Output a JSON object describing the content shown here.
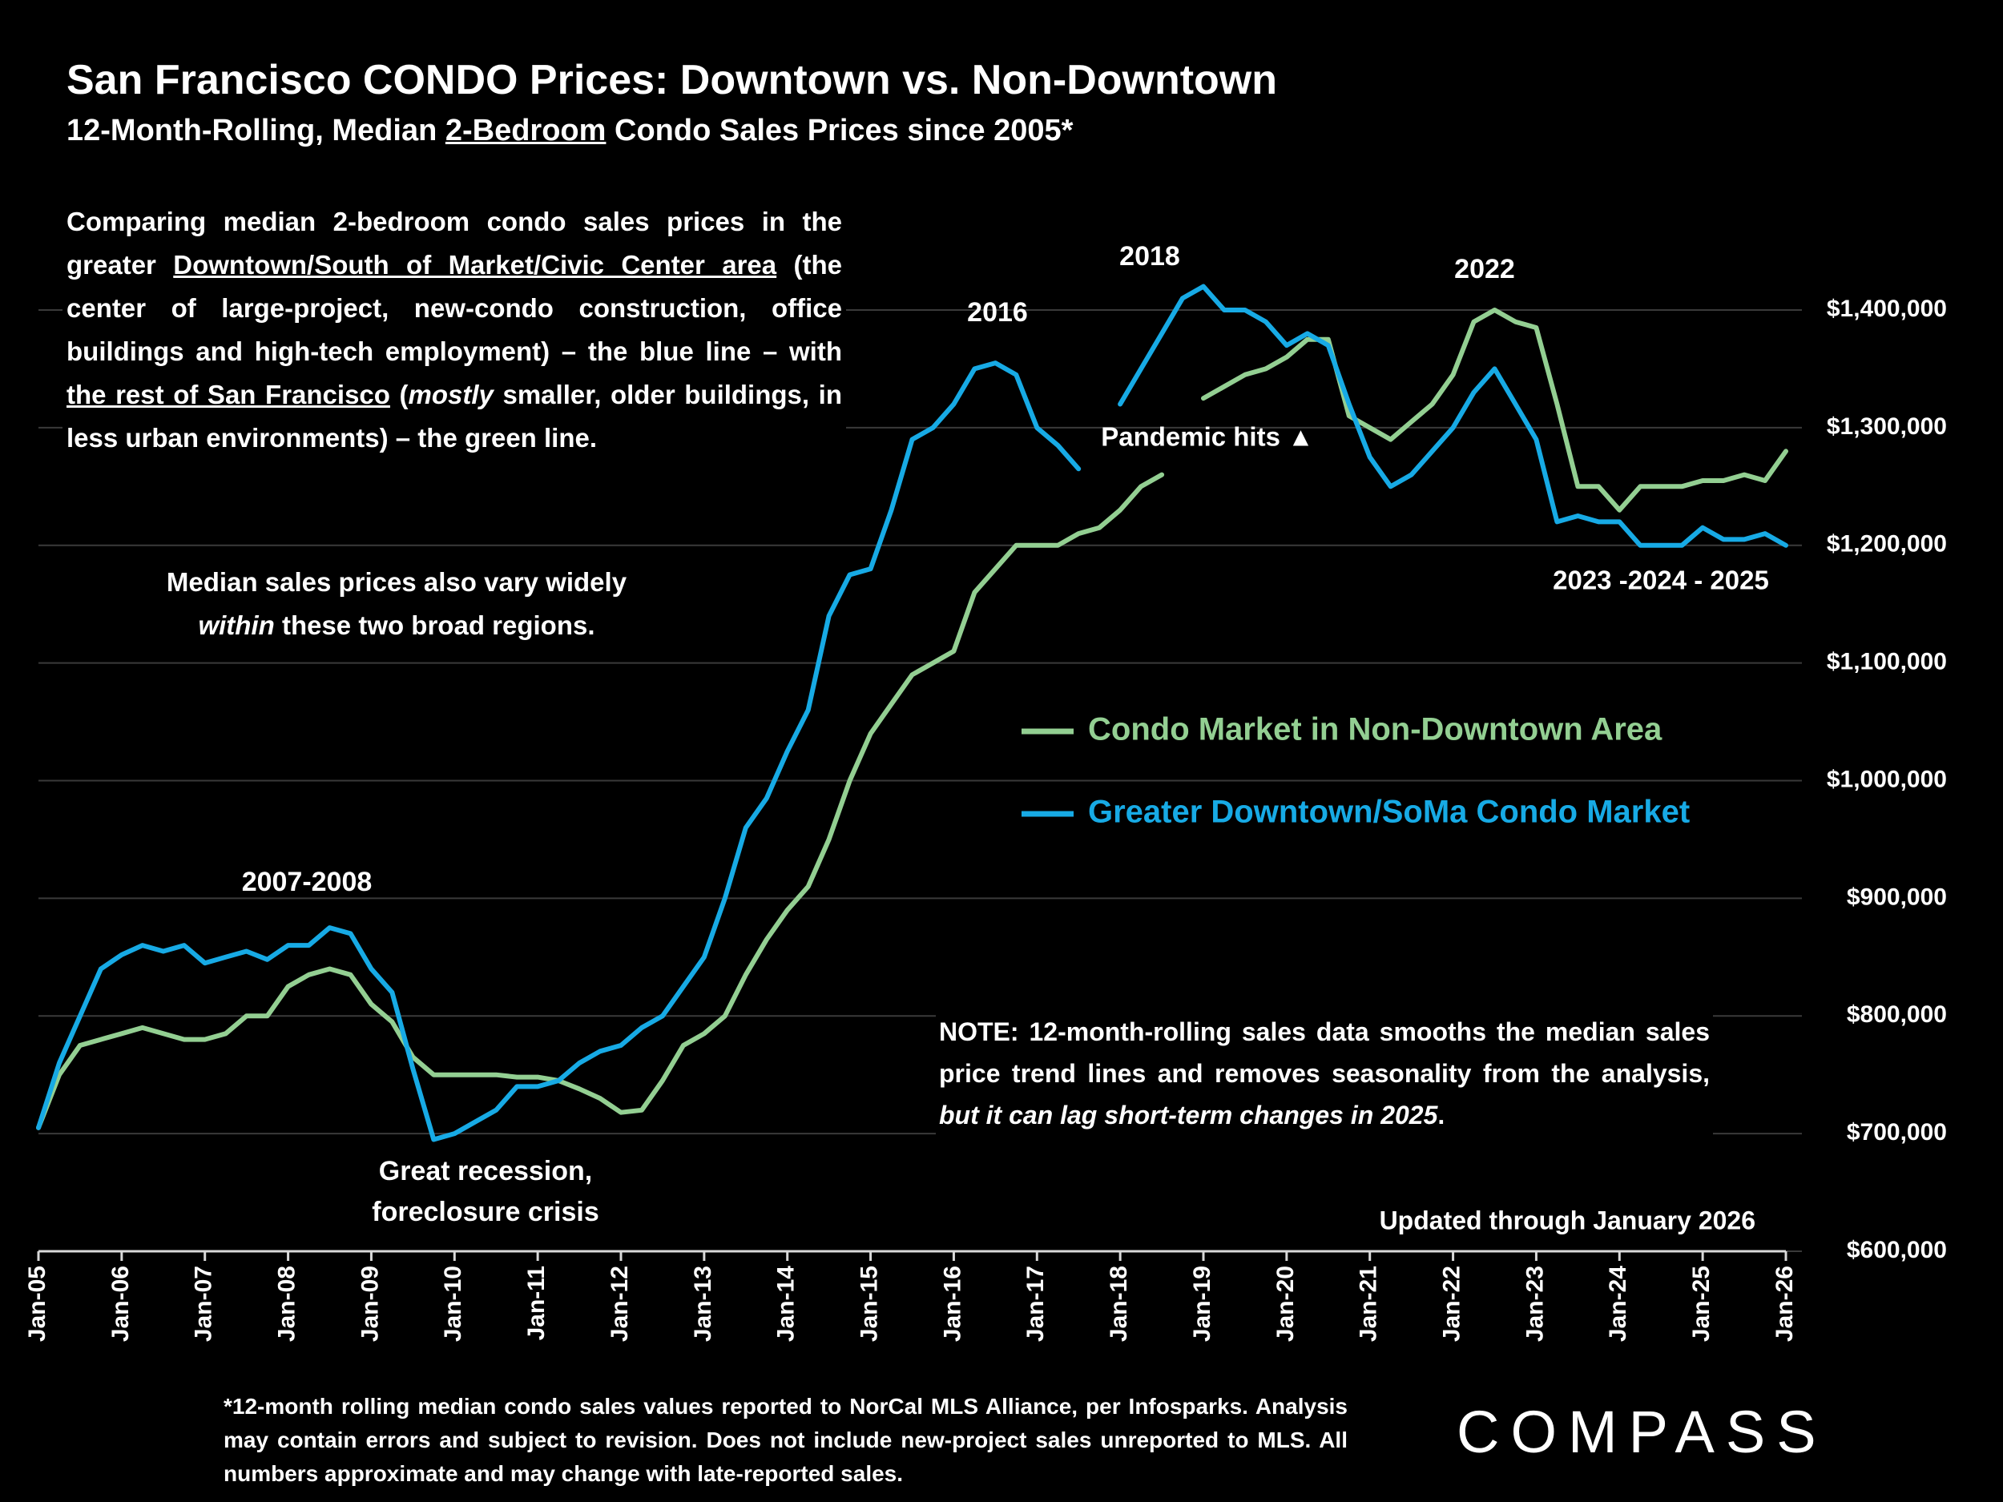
{
  "chart_data": {
    "type": "line",
    "title": "San Francisco CONDO Prices: Downtown vs. Non-Downtown",
    "subtitle": [
      "12-Month-Rolling, Median ",
      "2-Bedroom",
      " Condo Sales Prices since 2005*"
    ],
    "categories": [
      "Jan-05",
      null,
      null,
      null,
      "Jan-06",
      null,
      null,
      null,
      "Jan-07",
      null,
      null,
      null,
      "Jan-08",
      null,
      null,
      null,
      "Jan-09",
      null,
      null,
      null,
      "Jan-10",
      null,
      null,
      null,
      "Jan-11",
      null,
      null,
      null,
      "Jan-12",
      null,
      null,
      null,
      "Jan-13",
      null,
      null,
      null,
      "Jan-14",
      null,
      null,
      null,
      "Jan-15",
      null,
      null,
      null,
      "Jan-16",
      null,
      null,
      null,
      "Jan-17",
      null,
      null,
      null,
      "Jan-18",
      null,
      null,
      null,
      "Jan-19",
      null,
      null,
      null,
      "Jan-20",
      null,
      null,
      null,
      "Jan-21",
      null,
      null,
      null,
      "Jan-22",
      null,
      null,
      null,
      "Jan-23",
      null,
      null,
      null,
      "Jan-24",
      null,
      null,
      null,
      "Jan-25",
      null,
      null,
      null,
      "Jan-26"
    ],
    "series": [
      {
        "name": "Condo Market in Non-Downtown Area",
        "color": "#93cf92",
        "values": [
          705000,
          750000,
          775000,
          780000,
          785000,
          790000,
          785000,
          780000,
          780000,
          785000,
          800000,
          800000,
          825000,
          835000,
          840000,
          835000,
          810000,
          795000,
          765000,
          750000,
          750000,
          750000,
          750000,
          748000,
          748000,
          745000,
          738000,
          730000,
          718000,
          720000,
          745000,
          775000,
          785000,
          800000,
          835000,
          865000,
          890000,
          910000,
          950000,
          1000000,
          1040000,
          1065000,
          1090000,
          1100000,
          1110000,
          1160000,
          1180000,
          1200000,
          1200000,
          1200000,
          1210000,
          1215000,
          1230000,
          1250000,
          1260000,
          null,
          1325000,
          1335000,
          1345000,
          1350000,
          1360000,
          1375000,
          1375000,
          1310000,
          1300000,
          1290000,
          1305000,
          1320000,
          1345000,
          1390000,
          1400000,
          1390000,
          1385000,
          1320000,
          1250000,
          1250000,
          1230000,
          1250000,
          1250000,
          1250000,
          1255000,
          1255000,
          1260000,
          1255000,
          1280000
        ]
      },
      {
        "name": "Greater Downtown/SoMa Condo Market",
        "color": "#17aae5",
        "values": [
          705000,
          760000,
          800000,
          840000,
          852000,
          860000,
          855000,
          860000,
          845000,
          850000,
          855000,
          848000,
          860000,
          860000,
          875000,
          870000,
          840000,
          820000,
          755000,
          695000,
          700000,
          710000,
          720000,
          740000,
          740000,
          745000,
          760000,
          770000,
          775000,
          790000,
          800000,
          825000,
          850000,
          900000,
          960000,
          985000,
          1025000,
          1060000,
          1140000,
          1175000,
          1180000,
          1230000,
          1290000,
          1300000,
          1320000,
          1350000,
          1355000,
          1345000,
          1300000,
          1285000,
          1265000,
          null,
          1320000,
          1350000,
          1380000,
          1410000,
          1420000,
          1400000,
          1400000,
          1390000,
          1370000,
          1380000,
          1370000,
          1320000,
          1275000,
          1250000,
          1260000,
          1280000,
          1300000,
          1330000,
          1350000,
          1320000,
          1290000,
          1220000,
          1225000,
          1220000,
          1220000,
          1200000,
          1200000,
          1200000,
          1215000,
          1205000,
          1205000,
          1210000,
          1200000
        ]
      }
    ],
    "ylim": [
      600000,
      1400000
    ],
    "yticks": [
      {
        "value": 600000,
        "label": "$600,000"
      },
      {
        "value": 700000,
        "label": "$700,000"
      },
      {
        "value": 800000,
        "label": "$800,000"
      },
      {
        "value": 900000,
        "label": "$900,000"
      },
      {
        "value": 1000000,
        "label": "$1,000,000"
      },
      {
        "value": 1100000,
        "label": "$1,100,000"
      },
      {
        "value": 1200000,
        "label": "$1,200,000"
      },
      {
        "value": 1300000,
        "label": "$1,300,000"
      },
      {
        "value": 1400000,
        "label": "$1,400,000"
      }
    ],
    "grid": true,
    "annotations": {
      "intro": [
        "Comparing median 2-bedroom condo sales prices in the greater ",
        "Downtown/South of Market/Civic Center area",
        " (the center of large-project, new-condo construction, office buildings and high-tech employment) – the blue line – with ",
        "the rest of San Francisco",
        " (",
        "mostly",
        " smaller, older buildings, in less urban environments) – the green line."
      ],
      "regions": [
        "Median sales prices also vary widely ",
        "within",
        " these two broad regions."
      ],
      "note": [
        "NOTE: 12-month-rolling sales data smooths the median sales price trend lines and removes seasonality from the analysis, ",
        "but it can lag short-term changes in 2025",
        "."
      ],
      "peak_2007": "2007-2008",
      "recession": [
        "Great recession,",
        "foreclosure crisis"
      ],
      "peak_2016": "2016",
      "peak_2018": "2018",
      "peak_2022": "2022",
      "pandemic": "Pandemic hits ▲",
      "recent": "2023 -2024 - 2025",
      "updated": "Updated through January 2026"
    },
    "footnote": "*12-month rolling median condo sales values reported to NorCal MLS Alliance, per Infosparks. Analysis may contain errors and subject to revision. Does not include new-project sales unreported to MLS. All numbers approximate and may change with late-reported sales.",
    "brand": "COMPASS"
  }
}
